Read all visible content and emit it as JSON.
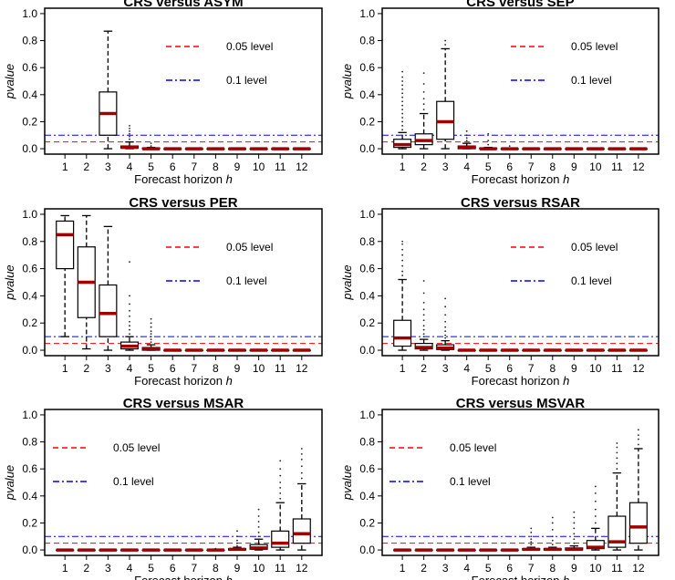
{
  "figure": {
    "x_label_prefix": "Forecast horizon ",
    "x_label_var": "h",
    "y_label": "pvalue",
    "legend": [
      {
        "label": "0.05 level",
        "color": "#ff0000",
        "style": "dashed"
      },
      {
        "label": "0.1 level",
        "color": "#0000ff",
        "style": "dashdot"
      }
    ],
    "median_color": "#a00000"
  },
  "chart_data": [
    {
      "type": "boxplot",
      "title": "CRS versus  ASYM",
      "xlabel": "Forecast horizon h",
      "ylabel": "pvalue",
      "ylim": [
        0,
        1
      ],
      "yticks": [
        "0.0",
        "0.2",
        "0.4",
        "0.6",
        "0.8",
        "1.0"
      ],
      "categories": [
        "1",
        "2",
        "3",
        "4",
        "5",
        "6",
        "7",
        "8",
        "9",
        "10",
        "11",
        "12"
      ],
      "reference_lines": [
        {
          "label": "0.05 level",
          "value": 0.05
        },
        {
          "label": "0.1 level",
          "value": 0.1
        }
      ],
      "legend_position": "top-right",
      "boxes": [
        null,
        null,
        {
          "min": 0.0,
          "q1": 0.1,
          "median": 0.26,
          "q3": 0.42,
          "max": 0.87,
          "outliers": []
        },
        {
          "min": 0.0,
          "q1": 0.005,
          "median": 0.01,
          "q3": 0.02,
          "max": 0.05,
          "outliers": [
            0.07,
            0.09,
            0.11,
            0.13,
            0.15,
            0.17
          ]
        },
        {
          "min": 0.0,
          "q1": 0.0,
          "median": 0.0,
          "q3": 0.005,
          "max": 0.01,
          "outliers": [
            0.02,
            0.04
          ]
        },
        {
          "min": 0.0,
          "q1": 0.0,
          "median": 0.0,
          "q3": 0.0,
          "max": 0.0,
          "outliers": []
        },
        {
          "min": 0.0,
          "q1": 0.0,
          "median": 0.0,
          "q3": 0.0,
          "max": 0.0,
          "outliers": []
        },
        {
          "min": 0.0,
          "q1": 0.0,
          "median": 0.0,
          "q3": 0.0,
          "max": 0.0,
          "outliers": []
        },
        {
          "min": 0.0,
          "q1": 0.0,
          "median": 0.0,
          "q3": 0.0,
          "max": 0.0,
          "outliers": []
        },
        {
          "min": 0.0,
          "q1": 0.0,
          "median": 0.0,
          "q3": 0.0,
          "max": 0.0,
          "outliers": []
        },
        {
          "min": 0.0,
          "q1": 0.0,
          "median": 0.0,
          "q3": 0.0,
          "max": 0.0,
          "outliers": []
        },
        {
          "min": 0.0,
          "q1": 0.0,
          "median": 0.0,
          "q3": 0.0,
          "max": 0.0,
          "outliers": []
        }
      ]
    },
    {
      "type": "boxplot",
      "title": "CRS versus  SEP",
      "xlabel": "Forecast horizon h",
      "ylabel": "pvalue",
      "ylim": [
        0,
        1
      ],
      "yticks": [
        "0.0",
        "0.2",
        "0.4",
        "0.6",
        "0.8",
        "1.0"
      ],
      "categories": [
        "1",
        "2",
        "3",
        "4",
        "5",
        "6",
        "7",
        "8",
        "9",
        "10",
        "11",
        "12"
      ],
      "reference_lines": [
        {
          "label": "0.05 level",
          "value": 0.05
        },
        {
          "label": "0.1 level",
          "value": 0.1
        }
      ],
      "legend_position": "top-right",
      "boxes": [
        {
          "min": 0.0,
          "q1": 0.01,
          "median": 0.03,
          "q3": 0.07,
          "max": 0.12,
          "outliers": [
            0.14,
            0.17,
            0.2,
            0.23,
            0.26,
            0.29,
            0.32,
            0.35,
            0.38,
            0.41,
            0.44,
            0.47,
            0.5,
            0.53,
            0.57
          ]
        },
        {
          "min": 0.0,
          "q1": 0.03,
          "median": 0.06,
          "q3": 0.11,
          "max": 0.26,
          "outliers": [
            0.29,
            0.33,
            0.37,
            0.42,
            0.48,
            0.56
          ]
        },
        {
          "min": 0.0,
          "q1": 0.07,
          "median": 0.2,
          "q3": 0.35,
          "max": 0.74,
          "outliers": [
            0.77,
            0.8
          ]
        },
        {
          "min": 0.0,
          "q1": 0.0,
          "median": 0.01,
          "q3": 0.02,
          "max": 0.04,
          "outliers": [
            0.06,
            0.08,
            0.1,
            0.13
          ]
        },
        {
          "min": 0.0,
          "q1": 0.0,
          "median": 0.0,
          "q3": 0.005,
          "max": 0.01,
          "outliers": [
            0.03,
            0.06,
            0.11
          ]
        },
        {
          "min": 0.0,
          "q1": 0.0,
          "median": 0.0,
          "q3": 0.0,
          "max": 0.0,
          "outliers": [
            0.02
          ]
        },
        {
          "min": 0.0,
          "q1": 0.0,
          "median": 0.0,
          "q3": 0.0,
          "max": 0.0,
          "outliers": []
        },
        {
          "min": 0.0,
          "q1": 0.0,
          "median": 0.0,
          "q3": 0.0,
          "max": 0.0,
          "outliers": []
        },
        {
          "min": 0.0,
          "q1": 0.0,
          "median": 0.0,
          "q3": 0.0,
          "max": 0.0,
          "outliers": []
        },
        {
          "min": 0.0,
          "q1": 0.0,
          "median": 0.0,
          "q3": 0.0,
          "max": 0.0,
          "outliers": []
        },
        {
          "min": 0.0,
          "q1": 0.0,
          "median": 0.0,
          "q3": 0.0,
          "max": 0.0,
          "outliers": []
        },
        {
          "min": 0.0,
          "q1": 0.0,
          "median": 0.0,
          "q3": 0.0,
          "max": 0.0,
          "outliers": []
        }
      ]
    },
    {
      "type": "boxplot",
      "title": "CRS versus  PER",
      "xlabel": "Forecast horizon h",
      "ylabel": "pvalue",
      "ylim": [
        0,
        1
      ],
      "yticks": [
        "0.0",
        "0.2",
        "0.4",
        "0.6",
        "0.8",
        "1.0"
      ],
      "categories": [
        "1",
        "2",
        "3",
        "4",
        "5",
        "6",
        "7",
        "8",
        "9",
        "10",
        "11",
        "12"
      ],
      "reference_lines": [
        {
          "label": "0.05 level",
          "value": 0.05
        },
        {
          "label": "0.1 level",
          "value": 0.1
        }
      ],
      "legend_position": "right",
      "boxes": [
        {
          "min": 0.1,
          "q1": 0.6,
          "median": 0.85,
          "q3": 0.95,
          "max": 0.99,
          "outliers": []
        },
        {
          "min": 0.01,
          "q1": 0.24,
          "median": 0.5,
          "q3": 0.76,
          "max": 0.99,
          "outliers": []
        },
        {
          "min": 0.0,
          "q1": 0.1,
          "median": 0.27,
          "q3": 0.48,
          "max": 0.91,
          "outliers": []
        },
        {
          "min": 0.0,
          "q1": 0.01,
          "median": 0.03,
          "q3": 0.06,
          "max": 0.1,
          "outliers": [
            0.12,
            0.15,
            0.18,
            0.21,
            0.25,
            0.29,
            0.34,
            0.4,
            0.65
          ]
        },
        {
          "min": 0.0,
          "q1": 0.0,
          "median": 0.01,
          "q3": 0.02,
          "max": 0.04,
          "outliers": [
            0.06,
            0.08,
            0.1,
            0.12,
            0.14,
            0.17,
            0.2,
            0.23
          ]
        },
        {
          "min": 0.0,
          "q1": 0.0,
          "median": 0.0,
          "q3": 0.0,
          "max": 0.0,
          "outliers": []
        },
        {
          "min": 0.0,
          "q1": 0.0,
          "median": 0.0,
          "q3": 0.0,
          "max": 0.0,
          "outliers": []
        },
        {
          "min": 0.0,
          "q1": 0.0,
          "median": 0.0,
          "q3": 0.0,
          "max": 0.0,
          "outliers": []
        },
        {
          "min": 0.0,
          "q1": 0.0,
          "median": 0.0,
          "q3": 0.0,
          "max": 0.0,
          "outliers": []
        },
        {
          "min": 0.0,
          "q1": 0.0,
          "median": 0.0,
          "q3": 0.0,
          "max": 0.0,
          "outliers": []
        },
        {
          "min": 0.0,
          "q1": 0.0,
          "median": 0.0,
          "q3": 0.0,
          "max": 0.0,
          "outliers": []
        },
        {
          "min": 0.0,
          "q1": 0.0,
          "median": 0.0,
          "q3": 0.0,
          "max": 0.0,
          "outliers": []
        }
      ]
    },
    {
      "type": "boxplot",
      "title": "CRS versus  RSAR",
      "xlabel": "Forecast horizon h",
      "ylabel": "pvalue",
      "ylim": [
        0,
        1
      ],
      "yticks": [
        "0.0",
        "0.2",
        "0.4",
        "0.6",
        "0.8",
        "1.0"
      ],
      "categories": [
        "1",
        "2",
        "3",
        "4",
        "5",
        "6",
        "7",
        "8",
        "9",
        "10",
        "11",
        "12"
      ],
      "reference_lines": [
        {
          "label": "0.05 level",
          "value": 0.05
        },
        {
          "label": "0.1 level",
          "value": 0.1
        }
      ],
      "legend_position": "right",
      "boxes": [
        {
          "min": 0.0,
          "q1": 0.03,
          "median": 0.09,
          "q3": 0.22,
          "max": 0.52,
          "outliers": [
            0.55,
            0.58,
            0.62,
            0.66,
            0.7,
            0.74,
            0.78,
            0.8
          ]
        },
        {
          "min": 0.0,
          "q1": 0.01,
          "median": 0.02,
          "q3": 0.05,
          "max": 0.08,
          "outliers": [
            0.1,
            0.12,
            0.15,
            0.18,
            0.22,
            0.26,
            0.3,
            0.35,
            0.42,
            0.51
          ]
        },
        {
          "min": 0.0,
          "q1": 0.005,
          "median": 0.015,
          "q3": 0.04,
          "max": 0.07,
          "outliers": [
            0.09,
            0.11,
            0.14,
            0.17,
            0.21,
            0.26,
            0.32,
            0.38
          ]
        },
        {
          "min": 0.0,
          "q1": 0.0,
          "median": 0.0,
          "q3": 0.0,
          "max": 0.0,
          "outliers": []
        },
        {
          "min": 0.0,
          "q1": 0.0,
          "median": 0.0,
          "q3": 0.0,
          "max": 0.0,
          "outliers": []
        },
        {
          "min": 0.0,
          "q1": 0.0,
          "median": 0.0,
          "q3": 0.0,
          "max": 0.0,
          "outliers": []
        },
        {
          "min": 0.0,
          "q1": 0.0,
          "median": 0.0,
          "q3": 0.0,
          "max": 0.0,
          "outliers": []
        },
        {
          "min": 0.0,
          "q1": 0.0,
          "median": 0.0,
          "q3": 0.0,
          "max": 0.0,
          "outliers": []
        },
        {
          "min": 0.0,
          "q1": 0.0,
          "median": 0.0,
          "q3": 0.0,
          "max": 0.0,
          "outliers": []
        },
        {
          "min": 0.0,
          "q1": 0.0,
          "median": 0.0,
          "q3": 0.0,
          "max": 0.0,
          "outliers": []
        },
        {
          "min": 0.0,
          "q1": 0.0,
          "median": 0.0,
          "q3": 0.0,
          "max": 0.0,
          "outliers": []
        },
        {
          "min": 0.0,
          "q1": 0.0,
          "median": 0.0,
          "q3": 0.0,
          "max": 0.0,
          "outliers": []
        }
      ]
    },
    {
      "type": "boxplot",
      "title": "CRS versus  MSAR",
      "xlabel": "Forecast horizon h",
      "ylabel": "pvalue",
      "ylim": [
        0,
        1
      ],
      "yticks": [
        "0.0",
        "0.2",
        "0.4",
        "0.6",
        "0.8",
        "1.0"
      ],
      "categories": [
        "1",
        "2",
        "3",
        "4",
        "5",
        "6",
        "7",
        "8",
        "9",
        "10",
        "11",
        "12"
      ],
      "reference_lines": [
        {
          "label": "0.05 level",
          "value": 0.05
        },
        {
          "label": "0.1 level",
          "value": 0.1
        }
      ],
      "legend_position": "left",
      "boxes": [
        {
          "min": 0.0,
          "q1": 0.0,
          "median": 0.0,
          "q3": 0.0,
          "max": 0.0,
          "outliers": []
        },
        {
          "min": 0.0,
          "q1": 0.0,
          "median": 0.0,
          "q3": 0.0,
          "max": 0.0,
          "outliers": []
        },
        {
          "min": 0.0,
          "q1": 0.0,
          "median": 0.0,
          "q3": 0.0,
          "max": 0.0,
          "outliers": []
        },
        {
          "min": 0.0,
          "q1": 0.0,
          "median": 0.0,
          "q3": 0.0,
          "max": 0.0,
          "outliers": []
        },
        {
          "min": 0.0,
          "q1": 0.0,
          "median": 0.0,
          "q3": 0.0,
          "max": 0.0,
          "outliers": []
        },
        {
          "min": 0.0,
          "q1": 0.0,
          "median": 0.0,
          "q3": 0.0,
          "max": 0.0,
          "outliers": []
        },
        {
          "min": 0.0,
          "q1": 0.0,
          "median": 0.0,
          "q3": 0.0,
          "max": 0.0,
          "outliers": []
        },
        {
          "min": 0.0,
          "q1": 0.0,
          "median": 0.0,
          "q3": 0.0,
          "max": 0.0,
          "outliers": [
            0.01
          ]
        },
        {
          "min": 0.0,
          "q1": 0.0,
          "median": 0.005,
          "q3": 0.01,
          "max": 0.02,
          "outliers": [
            0.03,
            0.05,
            0.07,
            0.1,
            0.14
          ]
        },
        {
          "min": 0.0,
          "q1": 0.005,
          "median": 0.015,
          "q3": 0.04,
          "max": 0.08,
          "outliers": [
            0.1,
            0.13,
            0.17,
            0.21,
            0.25,
            0.3
          ]
        },
        {
          "min": 0.0,
          "q1": 0.02,
          "median": 0.05,
          "q3": 0.14,
          "max": 0.35,
          "outliers": [
            0.38,
            0.42,
            0.46,
            0.5,
            0.55,
            0.6,
            0.66
          ]
        },
        {
          "min": 0.0,
          "q1": 0.05,
          "median": 0.12,
          "q3": 0.23,
          "max": 0.49,
          "outliers": [
            0.53,
            0.57,
            0.62,
            0.67,
            0.71,
            0.75
          ]
        }
      ]
    },
    {
      "type": "boxplot",
      "title": "CRS versus  MSVAR",
      "xlabel": "Forecast horizon h",
      "ylabel": "pvalue",
      "ylim": [
        0,
        1
      ],
      "yticks": [
        "0.0",
        "0.2",
        "0.4",
        "0.6",
        "0.8",
        "1.0"
      ],
      "categories": [
        "1",
        "2",
        "3",
        "4",
        "5",
        "6",
        "7",
        "8",
        "9",
        "10",
        "11",
        "12"
      ],
      "reference_lines": [
        {
          "label": "0.05 level",
          "value": 0.05
        },
        {
          "label": "0.1 level",
          "value": 0.1
        }
      ],
      "legend_position": "left",
      "boxes": [
        {
          "min": 0.0,
          "q1": 0.0,
          "median": 0.0,
          "q3": 0.0,
          "max": 0.0,
          "outliers": []
        },
        {
          "min": 0.0,
          "q1": 0.0,
          "median": 0.0,
          "q3": 0.0,
          "max": 0.0,
          "outliers": []
        },
        {
          "min": 0.0,
          "q1": 0.0,
          "median": 0.0,
          "q3": 0.0,
          "max": 0.0,
          "outliers": []
        },
        {
          "min": 0.0,
          "q1": 0.0,
          "median": 0.0,
          "q3": 0.0,
          "max": 0.0,
          "outliers": []
        },
        {
          "min": 0.0,
          "q1": 0.0,
          "median": 0.0,
          "q3": 0.0,
          "max": 0.0,
          "outliers": []
        },
        {
          "min": 0.0,
          "q1": 0.0,
          "median": 0.0,
          "q3": 0.0,
          "max": 0.0,
          "outliers": []
        },
        {
          "min": 0.0,
          "q1": 0.0,
          "median": 0.005,
          "q3": 0.01,
          "max": 0.02,
          "outliers": [
            0.04,
            0.06,
            0.08,
            0.1,
            0.13,
            0.16
          ]
        },
        {
          "min": 0.0,
          "q1": 0.0,
          "median": 0.005,
          "q3": 0.01,
          "max": 0.02,
          "outliers": [
            0.04,
            0.07,
            0.1,
            0.15,
            0.2,
            0.24
          ]
        },
        {
          "min": 0.0,
          "q1": 0.0,
          "median": 0.005,
          "q3": 0.015,
          "max": 0.03,
          "outliers": [
            0.05,
            0.08,
            0.12,
            0.16,
            0.2,
            0.24,
            0.28
          ]
        },
        {
          "min": 0.0,
          "q1": 0.01,
          "median": 0.02,
          "q3": 0.07,
          "max": 0.16,
          "outliers": [
            0.2,
            0.25,
            0.3,
            0.36,
            0.42,
            0.47
          ]
        },
        {
          "min": 0.0,
          "q1": 0.02,
          "median": 0.06,
          "q3": 0.25,
          "max": 0.57,
          "outliers": [
            0.6,
            0.64,
            0.68,
            0.72,
            0.76,
            0.79
          ]
        },
        {
          "min": 0.0,
          "q1": 0.05,
          "median": 0.17,
          "q3": 0.35,
          "max": 0.75,
          "outliers": [
            0.78,
            0.82,
            0.85,
            0.89
          ]
        }
      ]
    }
  ]
}
